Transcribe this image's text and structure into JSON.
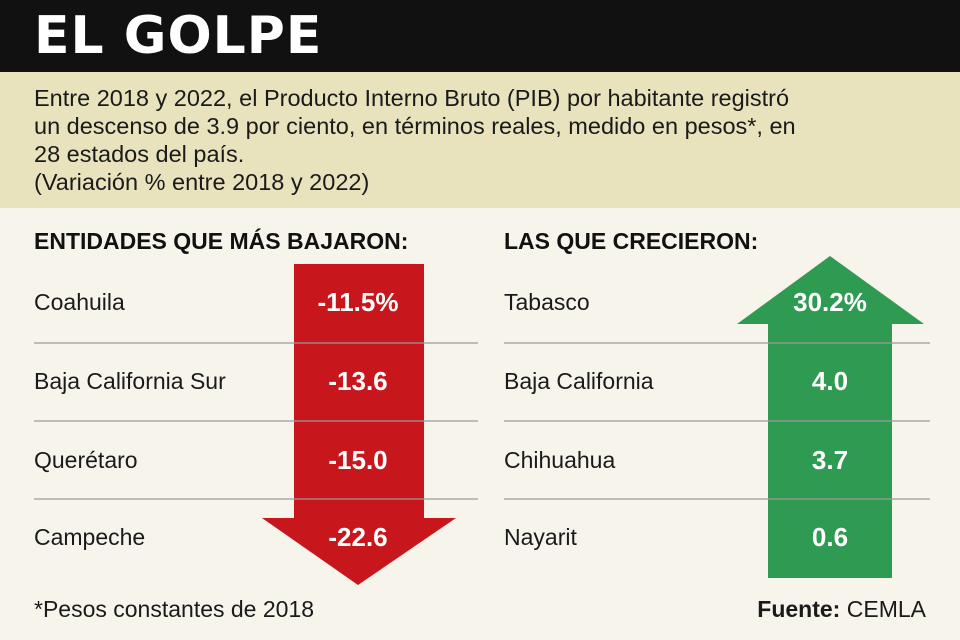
{
  "header": {
    "title": "EL GOLPE"
  },
  "intro": {
    "lines": [
      "Entre 2018 y 2022, el Producto Interno Bruto (PIB) por habitante registró",
      "un descenso de 3.9 por ciento, en términos reales, medido en pesos*, en",
      "28 estados del país.",
      "(Variación % entre 2018 y 2022)"
    ]
  },
  "footer": {
    "footnote": "*Pesos constantes de 2018",
    "source_label": "Fuente:",
    "source_value": "CEMLA"
  },
  "colors": {
    "decline": "#c8161d",
    "growth": "#2f9a51",
    "header": "#111111",
    "intro_bg": "#e8e3bd",
    "page_bg": "#f7f4ec"
  },
  "chart_data": [
    {
      "type": "table",
      "title": "ENTIDADES QUE MÁS BAJARON:",
      "categories": [
        "Coahuila",
        "Baja California Sur",
        "Querétaro",
        "Campeche"
      ],
      "values": [
        -11.5,
        -13.6,
        -15.0,
        -22.6
      ],
      "value_labels": [
        "-11.5%",
        "-13.6",
        "-15.0",
        "-22.6"
      ],
      "marker": "down-arrow"
    },
    {
      "type": "table",
      "title": "LAS QUE CRECIERON:",
      "categories": [
        "Tabasco",
        "Baja California",
        "Chihuahua",
        "Nayarit"
      ],
      "values": [
        30.2,
        4.0,
        3.7,
        0.6
      ],
      "value_labels": [
        "30.2%",
        "4.0",
        "3.7",
        "0.6"
      ],
      "marker": "up-arrow"
    }
  ]
}
